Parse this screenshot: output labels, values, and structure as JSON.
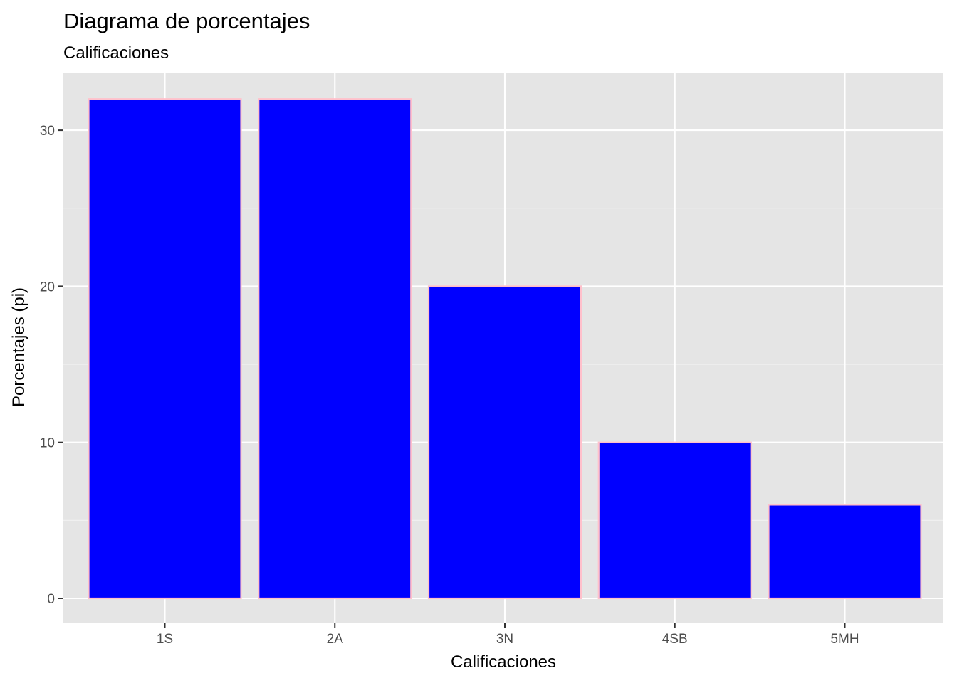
{
  "chart_data": {
    "type": "bar",
    "title": "Diagrama de porcentajes",
    "subtitle": "Calificaciones",
    "xlabel": "Calificaciones",
    "ylabel": "Porcentajes (pi)",
    "categories": [
      "1S",
      "2A",
      "3N",
      "4SB",
      "5MH"
    ],
    "values": [
      32,
      32,
      20,
      10,
      6
    ],
    "ylim": [
      0,
      33
    ],
    "yticks": [
      0,
      10,
      20,
      30
    ],
    "grid": true,
    "legend": "none",
    "colors": {
      "bar_fill": "#0000ff",
      "bar_outline": "#ffc0cb",
      "panel_background": "#e5e5e5",
      "grid_major": "#ffffff",
      "grid_minor": "#f2f2f2"
    }
  }
}
